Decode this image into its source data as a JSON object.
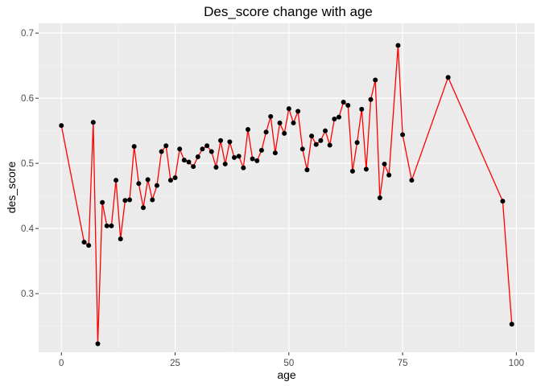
{
  "chart_data": {
    "type": "line",
    "title": "Des_score change with age",
    "xlabel": "age",
    "ylabel": "des_score",
    "xlim": [
      -5,
      104
    ],
    "ylim": [
      0.21,
      0.715
    ],
    "x_ticks": [
      0,
      25,
      50,
      75,
      100
    ],
    "y_ticks": [
      0.3,
      0.4,
      0.5,
      0.6,
      0.7
    ],
    "x_tick_labels": [
      "0",
      "25",
      "50",
      "75",
      "100"
    ],
    "y_tick_labels": [
      "0.3",
      "0.4",
      "0.5",
      "0.6",
      "0.7"
    ],
    "grid": true,
    "legend": "none",
    "colors": {
      "panel": "#ebebeb",
      "grid_major": "#ffffff",
      "grid_minor": "#f5f5f5",
      "line": "#ff0000",
      "point": "#000000",
      "tick": "#333333"
    },
    "series": [
      {
        "x": [
          0,
          5,
          6,
          7,
          8,
          9,
          10,
          11,
          12,
          13,
          14,
          15,
          16,
          17,
          18,
          19,
          20,
          21,
          22,
          23,
          24,
          25,
          26,
          27,
          28,
          29,
          30,
          31,
          32,
          33,
          34,
          35,
          36,
          37,
          38,
          39,
          40,
          41,
          42,
          43,
          44,
          45,
          46,
          47,
          48,
          49,
          50,
          51,
          52,
          53,
          54,
          55,
          56,
          57,
          58,
          59,
          60,
          61,
          62,
          63,
          64,
          65,
          66,
          67,
          68,
          69,
          70,
          71,
          72,
          74,
          75,
          77,
          85,
          97,
          99
        ],
        "y": [
          0.558,
          0.379,
          0.374,
          0.563,
          0.223,
          0.44,
          0.404,
          0.404,
          0.474,
          0.384,
          0.443,
          0.444,
          0.526,
          0.469,
          0.432,
          0.475,
          0.444,
          0.466,
          0.518,
          0.527,
          0.474,
          0.478,
          0.522,
          0.505,
          0.502,
          0.495,
          0.51,
          0.522,
          0.527,
          0.518,
          0.494,
          0.535,
          0.499,
          0.533,
          0.509,
          0.511,
          0.493,
          0.552,
          0.507,
          0.504,
          0.52,
          0.548,
          0.572,
          0.516,
          0.562,
          0.546,
          0.584,
          0.562,
          0.58,
          0.522,
          0.49,
          0.542,
          0.529,
          0.535,
          0.55,
          0.528,
          0.568,
          0.571,
          0.594,
          0.589,
          0.488,
          0.532,
          0.583,
          0.491,
          0.598,
          0.628,
          0.447,
          0.499,
          0.482,
          0.681,
          0.544,
          0.474,
          0.632,
          0.442,
          0.253
        ]
      }
    ]
  }
}
